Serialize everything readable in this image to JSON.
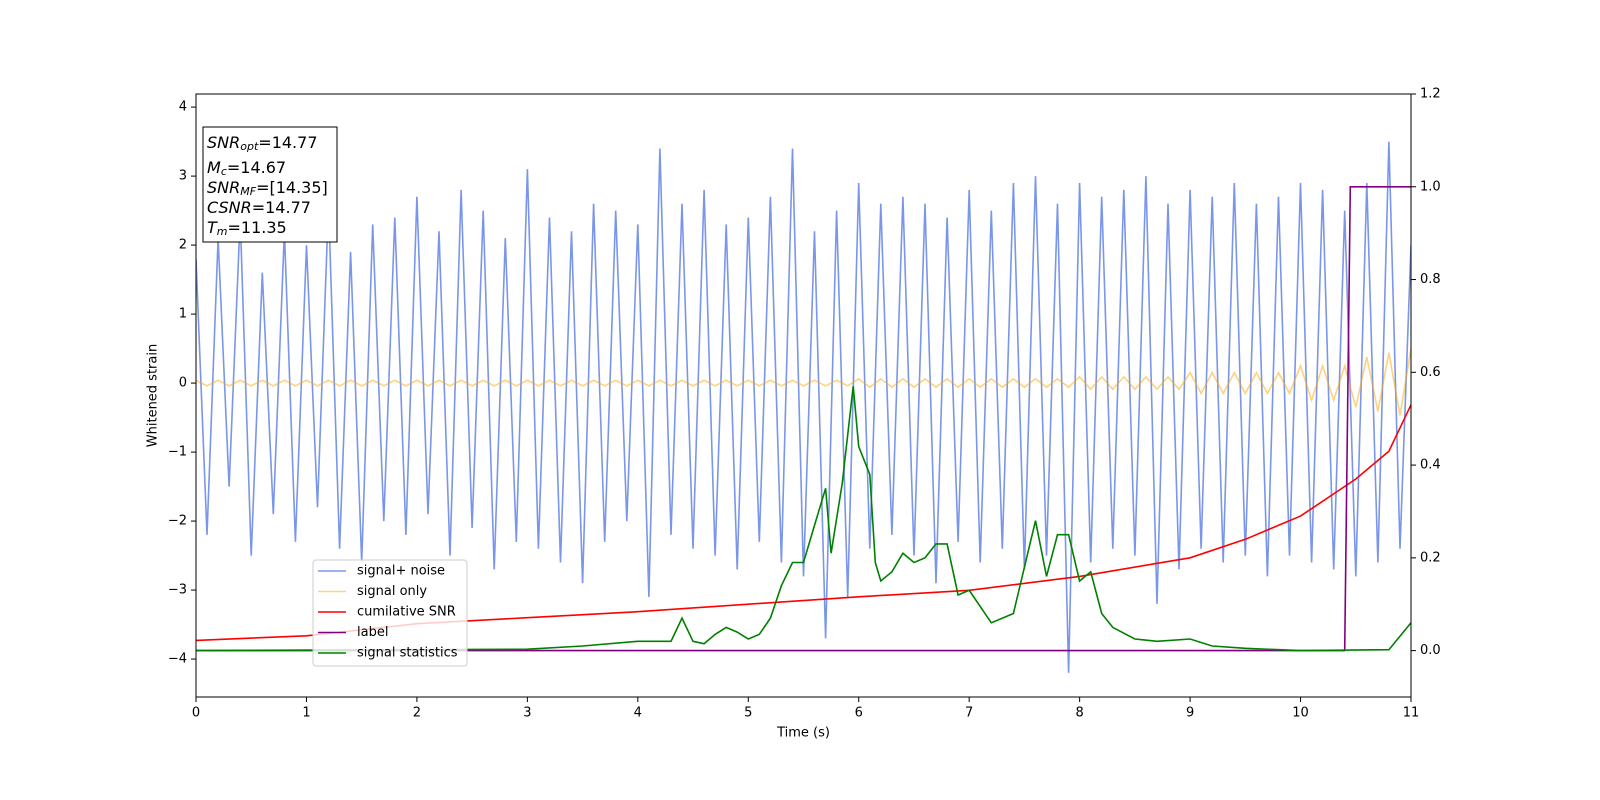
{
  "chart_data": {
    "type": "line",
    "xlabel": "Time (s)",
    "ylabel": "Whitened strain",
    "xlim": [
      0,
      11
    ],
    "xticks": [
      0,
      1,
      2,
      3,
      4,
      5,
      6,
      7,
      8,
      9,
      10,
      11
    ],
    "ylim": [
      -4.55,
      4.19
    ],
    "yticks": [
      {
        "value": -4,
        "label": "−4"
      },
      {
        "value": -3,
        "label": "−3"
      },
      {
        "value": -2,
        "label": "−2"
      },
      {
        "value": -1,
        "label": "−1"
      },
      0,
      1,
      2,
      3,
      4
    ],
    "y2lim": [
      -0.1,
      1.2
    ],
    "y2ticks": [
      {
        "value": 0,
        "label": "0.0"
      },
      0.2,
      0.4,
      0.6,
      0.8,
      {
        "value": 1,
        "label": "1.0"
      },
      1.2
    ],
    "legend": "lower left",
    "annotation": [
      {
        "main": "SNR",
        "sub": "opt",
        "text": "=14.77"
      },
      {
        "main": "M",
        "sub": "c",
        "text": "=14.67"
      },
      {
        "main": "SNR",
        "sub": "MF",
        "text": "=[14.35]"
      },
      {
        "main": "CSNR",
        "sub": null,
        "text": "=14.77"
      },
      {
        "main": "T",
        "sub": "m",
        "text": "=11.35"
      }
    ],
    "series": [
      {
        "name": "signal+ noise",
        "color": "royalblue",
        "alpha": 0.7,
        "axis": "y",
        "x": [
          0,
          0.1,
          0.2,
          0.3,
          0.4,
          0.5,
          0.6,
          0.7,
          0.8,
          0.9,
          1,
          1.1,
          1.2,
          1.3,
          1.4,
          1.5,
          1.6,
          1.7,
          1.8,
          1.9,
          2,
          2.1,
          2.2,
          2.3,
          2.4,
          2.5,
          2.6,
          2.7,
          2.8,
          2.9,
          3,
          3.1,
          3.2,
          3.3,
          3.4,
          3.5,
          3.6,
          3.7,
          3.8,
          3.9,
          4,
          4.1,
          4.2,
          4.3,
          4.4,
          4.5,
          4.6,
          4.7,
          4.8,
          4.9,
          5,
          5.1,
          5.2,
          5.3,
          5.4,
          5.5,
          5.6,
          5.7,
          5.8,
          5.9,
          6,
          6.1,
          6.2,
          6.3,
          6.4,
          6.5,
          6.6,
          6.7,
          6.8,
          6.9,
          7,
          7.1,
          7.2,
          7.3,
          7.4,
          7.5,
          7.6,
          7.7,
          7.8,
          7.9,
          8,
          8.1,
          8.2,
          8.3,
          8.4,
          8.5,
          8.6,
          8.7,
          8.8,
          8.9,
          9,
          9.1,
          9.2,
          9.3,
          9.4,
          9.5,
          9.6,
          9.7,
          9.8,
          9.9,
          10,
          10.1,
          10.2,
          10.3,
          10.4,
          10.5,
          10.6,
          10.7,
          10.8,
          10.9,
          11
        ],
        "values": [
          1.8,
          -2.2,
          2.1,
          -1.5,
          2.4,
          -2.5,
          1.6,
          -1.9,
          2.2,
          -2.3,
          2.0,
          -1.8,
          2.6,
          -2.4,
          1.9,
          -2.6,
          2.3,
          -2.0,
          2.4,
          -2.2,
          2.7,
          -1.9,
          2.2,
          -2.5,
          2.8,
          -2.1,
          2.5,
          -2.7,
          2.1,
          -2.3,
          3.1,
          -2.4,
          2.4,
          -2.6,
          2.2,
          -2.9,
          2.6,
          -2.3,
          2.5,
          -2.0,
          2.3,
          -3.1,
          3.4,
          -2.2,
          2.6,
          -2.4,
          2.8,
          -2.5,
          2.3,
          -2.7,
          2.4,
          -2.3,
          2.7,
          -2.6,
          3.4,
          -2.8,
          2.2,
          -3.7,
          2.5,
          -3.1,
          2.9,
          -2.4,
          2.6,
          -2.2,
          2.7,
          -2.5,
          2.6,
          -2.9,
          2.4,
          -2.3,
          2.8,
          -2.6,
          2.5,
          -2.4,
          2.9,
          -2.7,
          3.0,
          -2.5,
          2.6,
          -4.2,
          2.9,
          -2.6,
          2.7,
          -2.4,
          2.8,
          -2.5,
          3.0,
          -3.2,
          2.6,
          -2.7,
          2.8,
          -2.4,
          2.7,
          -2.6,
          2.9,
          -2.5,
          2.6,
          -2.8,
          2.7,
          -2.5,
          2.9,
          -2.6,
          2.8,
          -2.7,
          2.5,
          -2.8,
          2.9,
          -2.6,
          3.5,
          -2.4,
          2.0
        ]
      },
      {
        "name": "signal only",
        "color": "orange",
        "alpha": 0.5,
        "axis": "y",
        "x": [
          0,
          0.1,
          0.2,
          0.3,
          0.4,
          0.5,
          0.6,
          0.7,
          0.8,
          0.9,
          1,
          1.1,
          1.2,
          1.3,
          1.4,
          1.5,
          1.6,
          1.7,
          1.8,
          1.9,
          2,
          2.1,
          2.2,
          2.3,
          2.4,
          2.5,
          2.6,
          2.7,
          2.8,
          2.9,
          3,
          3.1,
          3.2,
          3.3,
          3.4,
          3.5,
          3.6,
          3.7,
          3.8,
          3.9,
          4,
          4.1,
          4.2,
          4.3,
          4.4,
          4.5,
          4.6,
          4.7,
          4.8,
          4.9,
          5,
          5.1,
          5.2,
          5.3,
          5.4,
          5.5,
          5.6,
          5.7,
          5.8,
          5.9,
          6,
          6.1,
          6.2,
          6.3,
          6.4,
          6.5,
          6.6,
          6.7,
          6.8,
          6.9,
          7,
          7.1,
          7.2,
          7.3,
          7.4,
          7.5,
          7.6,
          7.7,
          7.8,
          7.9,
          8,
          8.1,
          8.2,
          8.3,
          8.4,
          8.5,
          8.6,
          8.7,
          8.8,
          8.9,
          9,
          9.1,
          9.2,
          9.3,
          9.4,
          9.5,
          9.6,
          9.7,
          9.8,
          9.9,
          10,
          10.1,
          10.2,
          10.3,
          10.4,
          10.5,
          10.6,
          10.7,
          10.8,
          10.9,
          11
        ],
        "values": [
          0.04,
          -0.04,
          0.04,
          -0.04,
          0.04,
          -0.04,
          0.04,
          -0.04,
          0.04,
          -0.04,
          0.04,
          -0.04,
          0.04,
          -0.04,
          0.04,
          -0.04,
          0.04,
          -0.04,
          0.04,
          -0.04,
          0.04,
          -0.04,
          0.04,
          -0.04,
          0.04,
          -0.04,
          0.04,
          -0.04,
          0.04,
          -0.04,
          0.04,
          -0.04,
          0.04,
          -0.04,
          0.04,
          -0.04,
          0.04,
          -0.04,
          0.04,
          -0.04,
          0.04,
          -0.04,
          0.04,
          -0.04,
          0.04,
          -0.04,
          0.04,
          -0.04,
          0.04,
          -0.04,
          0.04,
          -0.04,
          0.04,
          -0.04,
          0.04,
          -0.04,
          0.04,
          -0.04,
          0.04,
          -0.04,
          0.06,
          -0.06,
          0.06,
          -0.06,
          0.06,
          -0.06,
          0.06,
          -0.06,
          0.06,
          -0.06,
          0.06,
          -0.06,
          0.06,
          -0.06,
          0.06,
          -0.06,
          0.06,
          -0.06,
          0.06,
          -0.06,
          0.09,
          -0.09,
          0.09,
          -0.09,
          0.09,
          -0.09,
          0.09,
          -0.09,
          0.09,
          -0.09,
          0.15,
          -0.15,
          0.15,
          -0.15,
          0.15,
          -0.15,
          0.15,
          -0.15,
          0.15,
          -0.15,
          0.25,
          -0.25,
          0.25,
          -0.25,
          0.25,
          -0.35,
          0.38,
          -0.41,
          0.44,
          -0.47,
          0.5
        ]
      },
      {
        "name": "cumilative SNR",
        "color": "red",
        "alpha": 1,
        "axis": "y2",
        "x": [
          0,
          1,
          2,
          3,
          4,
          5,
          6,
          7,
          8,
          9,
          9.5,
          10,
          10.5,
          10.8,
          11
        ],
        "values": [
          0.022,
          0.032,
          0.058,
          0.071,
          0.084,
          0.1,
          0.116,
          0.13,
          0.16,
          0.2,
          0.24,
          0.29,
          0.37,
          0.43,
          0.53
        ]
      },
      {
        "name": "label",
        "color": "purple",
        "alpha": 1,
        "axis": "y2",
        "x": [
          0,
          10.4,
          10.45,
          11
        ],
        "values": [
          0,
          0,
          1,
          1
        ]
      },
      {
        "name": "signal statistics",
        "color": "green",
        "alpha": 1,
        "axis": "y2",
        "x": [
          0,
          3,
          3.5,
          4,
          4.3,
          4.4,
          4.5,
          4.6,
          4.7,
          4.8,
          4.9,
          5.0,
          5.1,
          5.2,
          5.3,
          5.4,
          5.5,
          5.6,
          5.7,
          5.75,
          5.85,
          5.95,
          6.0,
          6.1,
          6.15,
          6.2,
          6.3,
          6.4,
          6.5,
          6.6,
          6.7,
          6.8,
          6.9,
          7.0,
          7.2,
          7.4,
          7.6,
          7.7,
          7.8,
          7.9,
          8.0,
          8.1,
          8.2,
          8.3,
          8.5,
          8.7,
          9.0,
          9.2,
          9.5,
          10.0,
          10.8,
          11
        ],
        "values": [
          0,
          0.003,
          0.01,
          0.02,
          0.02,
          0.07,
          0.02,
          0.015,
          0.035,
          0.05,
          0.04,
          0.025,
          0.035,
          0.07,
          0.14,
          0.19,
          0.19,
          0.27,
          0.35,
          0.21,
          0.36,
          0.57,
          0.44,
          0.38,
          0.19,
          0.15,
          0.17,
          0.21,
          0.19,
          0.2,
          0.23,
          0.23,
          0.12,
          0.13,
          0.06,
          0.08,
          0.28,
          0.16,
          0.25,
          0.25,
          0.15,
          0.17,
          0.08,
          0.05,
          0.025,
          0.02,
          0.025,
          0.01,
          0.005,
          0,
          0.002,
          0.06
        ]
      }
    ]
  }
}
